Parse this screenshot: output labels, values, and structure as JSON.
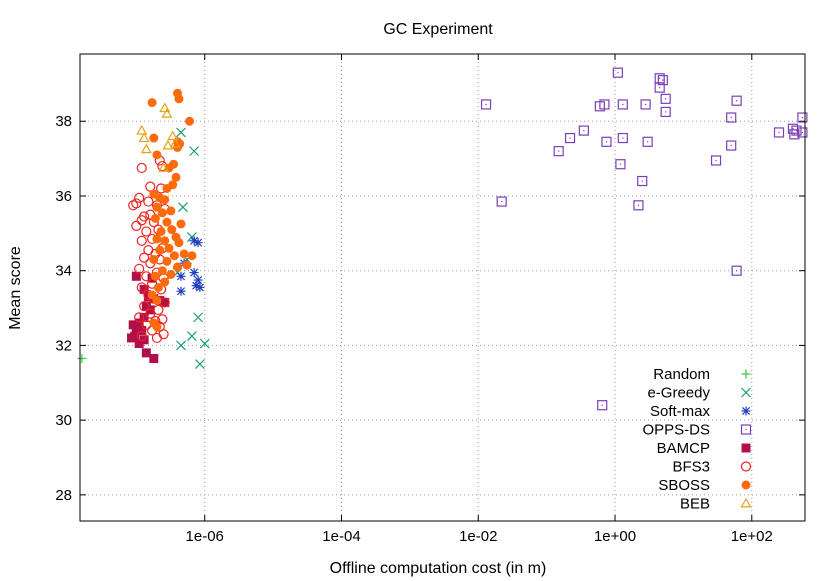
{
  "chart_data": {
    "type": "scatter",
    "title": "GC Experiment",
    "xlabel": "Offline computation cost (in m)",
    "ylabel": "Mean score",
    "x_scale": "log",
    "xlim": [
      1.5e-08,
      600
    ],
    "ylim": [
      27.3,
      39.8
    ],
    "x_ticks": [
      {
        "value": 1e-06,
        "label": "1e-06"
      },
      {
        "value": 0.0001,
        "label": "1e-04"
      },
      {
        "value": 0.01,
        "label": "1e-02"
      },
      {
        "value": 1,
        "label": "1e+00"
      },
      {
        "value": 100,
        "label": "1e+02"
      }
    ],
    "y_ticks": [
      {
        "value": 28,
        "label": "28"
      },
      {
        "value": 30,
        "label": "30"
      },
      {
        "value": 32,
        "label": "32"
      },
      {
        "value": 34,
        "label": "34"
      },
      {
        "value": 36,
        "label": "36"
      },
      {
        "value": 38,
        "label": "38"
      }
    ],
    "grid": true,
    "legend_position": "bottom-right",
    "series": [
      {
        "name": "Random",
        "marker": "plus",
        "color": "#33cc33",
        "points": [
          [
            1.6e-08,
            31.65
          ]
        ]
      },
      {
        "name": "e-Greedy",
        "marker": "x",
        "color": "#1a9e77",
        "points": [
          [
            4.5e-07,
            37.7
          ],
          [
            7e-07,
            37.2
          ],
          [
            4.8e-07,
            35.7
          ],
          [
            6.5e-07,
            34.9
          ],
          [
            5.5e-07,
            34.3
          ],
          [
            4e-07,
            33.95
          ],
          [
            8e-07,
            32.75
          ],
          [
            6.5e-07,
            32.25
          ],
          [
            4.5e-07,
            32.0
          ],
          [
            1e-06,
            32.05
          ],
          [
            8.5e-07,
            31.5
          ]
        ]
      },
      {
        "name": "Soft-max",
        "marker": "star",
        "color": "#1f3fbf",
        "points": [
          [
            7e-07,
            34.8
          ],
          [
            8e-07,
            34.75
          ],
          [
            5e-07,
            34.2
          ],
          [
            4.5e-07,
            33.85
          ],
          [
            7e-07,
            33.95
          ],
          [
            8e-07,
            33.75
          ],
          [
            7.5e-07,
            33.6
          ],
          [
            8.5e-07,
            33.55
          ],
          [
            4.5e-07,
            33.45
          ]
        ]
      },
      {
        "name": "OPPS-DS",
        "marker": "square-open",
        "color": "#7b3fb8",
        "points": [
          [
            1.1,
            39.3
          ],
          [
            4.5,
            39.15
          ],
          [
            5.0,
            39.1
          ],
          [
            4.5,
            38.9
          ],
          [
            5.5,
            38.6
          ],
          [
            60,
            38.55
          ],
          [
            0.013,
            38.45
          ],
          [
            0.7,
            38.45
          ],
          [
            1.3,
            38.45
          ],
          [
            2.8,
            38.45
          ],
          [
            0.6,
            38.4
          ],
          [
            5.5,
            38.25
          ],
          [
            50,
            38.1
          ],
          [
            550,
            38.1
          ],
          [
            0.35,
            37.75
          ],
          [
            400,
            37.8
          ],
          [
            250,
            37.7
          ],
          [
            450,
            37.75
          ],
          [
            420,
            37.65
          ],
          [
            550,
            37.7
          ],
          [
            0.22,
            37.55
          ],
          [
            1.3,
            37.55
          ],
          [
            0.75,
            37.45
          ],
          [
            3.0,
            37.45
          ],
          [
            50,
            37.35
          ],
          [
            0.15,
            37.2
          ],
          [
            30,
            36.95
          ],
          [
            1.2,
            36.85
          ],
          [
            2.5,
            36.4
          ],
          [
            0.022,
            35.85
          ],
          [
            2.2,
            35.75
          ],
          [
            60,
            34.0
          ],
          [
            0.65,
            30.4
          ]
        ]
      },
      {
        "name": "BAMCP",
        "marker": "square-filled",
        "color": "#b0104a",
        "points": [
          [
            1e-07,
            33.85
          ],
          [
            1.7e-07,
            33.8
          ],
          [
            1.3e-07,
            33.5
          ],
          [
            1.5e-07,
            33.3
          ],
          [
            1.8e-07,
            33.25
          ],
          [
            2.2e-07,
            33.2
          ],
          [
            2.6e-07,
            33.15
          ],
          [
            1.4e-07,
            33.05
          ],
          [
            1.6e-07,
            32.95
          ],
          [
            1.3e-07,
            32.75
          ],
          [
            1.1e-07,
            32.6
          ],
          [
            9e-08,
            32.55
          ],
          [
            1e-07,
            32.45
          ],
          [
            1.2e-07,
            32.4
          ],
          [
            9.5e-08,
            32.25
          ],
          [
            8.5e-08,
            32.2
          ],
          [
            1.3e-07,
            32.15
          ],
          [
            1.1e-07,
            32.05
          ],
          [
            1.4e-07,
            31.8
          ],
          [
            1.8e-07,
            31.65
          ]
        ]
      },
      {
        "name": "BFS3",
        "marker": "circle-open",
        "color": "#ee2222",
        "points": [
          [
            1.2e-07,
            36.75
          ],
          [
            2.2e-07,
            36.95
          ],
          [
            2.4e-07,
            36.8
          ],
          [
            1.6e-07,
            36.25
          ],
          [
            2.3e-07,
            36.2
          ],
          [
            1.1e-07,
            35.95
          ],
          [
            1.5e-07,
            35.85
          ],
          [
            1e-07,
            35.8
          ],
          [
            9e-08,
            35.75
          ],
          [
            2e-07,
            35.75
          ],
          [
            2.6e-07,
            35.65
          ],
          [
            1.3e-07,
            35.45
          ],
          [
            1.6e-07,
            35.5
          ],
          [
            1.2e-07,
            35.35
          ],
          [
            1.8e-07,
            35.3
          ],
          [
            1e-07,
            35.2
          ],
          [
            1.4e-07,
            35.05
          ],
          [
            2.1e-07,
            35.1
          ],
          [
            1.7e-07,
            34.85
          ],
          [
            1.2e-07,
            34.8
          ],
          [
            2.4e-07,
            34.6
          ],
          [
            1.5e-07,
            34.55
          ],
          [
            1.9e-07,
            34.45
          ],
          [
            1.3e-07,
            34.35
          ],
          [
            2.2e-07,
            34.3
          ],
          [
            1.6e-07,
            34.2
          ],
          [
            1.1e-07,
            34.05
          ],
          [
            2e-07,
            33.95
          ],
          [
            1.4e-07,
            33.85
          ],
          [
            2.5e-07,
            33.8
          ],
          [
            1.7e-07,
            33.65
          ],
          [
            1.2e-07,
            33.55
          ],
          [
            2.3e-07,
            33.5
          ],
          [
            1.5e-07,
            33.35
          ],
          [
            1.8e-07,
            33.25
          ],
          [
            2.6e-07,
            33.15
          ],
          [
            1.3e-07,
            33.05
          ],
          [
            2.1e-07,
            32.95
          ],
          [
            1.6e-07,
            32.85
          ],
          [
            1.1e-07,
            32.75
          ],
          [
            2.4e-07,
            32.7
          ],
          [
            1.9e-07,
            32.65
          ],
          [
            1.4e-07,
            32.55
          ],
          [
            2.2e-07,
            32.5
          ],
          [
            1.7e-07,
            32.4
          ],
          [
            2.5e-07,
            32.3
          ],
          [
            1.2e-07,
            32.25
          ],
          [
            2e-07,
            32.2
          ]
        ]
      },
      {
        "name": "SBOSS",
        "marker": "circle-filled",
        "color": "#ff6a0d",
        "points": [
          [
            4e-07,
            38.75
          ],
          [
            4.2e-07,
            38.6
          ],
          [
            1.7e-07,
            38.5
          ],
          [
            6e-07,
            38.0
          ],
          [
            1.8e-07,
            37.55
          ],
          [
            4e-07,
            37.45
          ],
          [
            4.3e-07,
            37.4
          ],
          [
            4e-07,
            37.3
          ],
          [
            2e-07,
            37.1
          ],
          [
            3.5e-07,
            36.85
          ],
          [
            3e-07,
            36.75
          ],
          [
            3.8e-07,
            36.5
          ],
          [
            3.4e-07,
            36.3
          ],
          [
            2.8e-07,
            36.2
          ],
          [
            1.8e-07,
            36.05
          ],
          [
            2.2e-07,
            35.95
          ],
          [
            2.6e-07,
            35.9
          ],
          [
            2e-07,
            35.7
          ],
          [
            3.2e-07,
            35.6
          ],
          [
            2.4e-07,
            35.55
          ],
          [
            1.9e-07,
            35.4
          ],
          [
            2.8e-07,
            35.3
          ],
          [
            4.5e-07,
            35.25
          ],
          [
            3.3e-07,
            35.1
          ],
          [
            2.3e-07,
            35.05
          ],
          [
            3.8e-07,
            34.9
          ],
          [
            2e-07,
            34.85
          ],
          [
            2.6e-07,
            34.8
          ],
          [
            4.2e-07,
            34.75
          ],
          [
            3e-07,
            34.6
          ],
          [
            2.2e-07,
            34.55
          ],
          [
            5e-07,
            34.45
          ],
          [
            3.6e-07,
            34.4
          ],
          [
            6.5e-07,
            34.4
          ],
          [
            1.8e-07,
            34.3
          ],
          [
            2.8e-07,
            34.25
          ],
          [
            4e-07,
            34.1
          ],
          [
            5.5e-07,
            34.15
          ],
          [
            2.4e-07,
            34.0
          ],
          [
            3.2e-07,
            33.9
          ],
          [
            1.9e-07,
            33.85
          ],
          [
            2.6e-07,
            33.7
          ],
          [
            2.1e-07,
            33.55
          ],
          [
            1.7e-07,
            33.35
          ],
          [
            2e-07,
            33.2
          ],
          [
            1.8e-07,
            32.6
          ],
          [
            2e-07,
            32.5
          ]
        ]
      },
      {
        "name": "BEB",
        "marker": "triangle-open",
        "color": "#e8a317",
        "points": [
          [
            2.6e-07,
            38.35
          ],
          [
            2.8e-07,
            38.2
          ],
          [
            1.2e-07,
            37.75
          ],
          [
            1.3e-07,
            37.55
          ],
          [
            3.4e-07,
            37.6
          ],
          [
            3.7e-07,
            37.4
          ],
          [
            2.9e-07,
            37.35
          ],
          [
            1.4e-07,
            37.25
          ],
          [
            2.5e-07,
            36.75
          ]
        ]
      }
    ]
  }
}
